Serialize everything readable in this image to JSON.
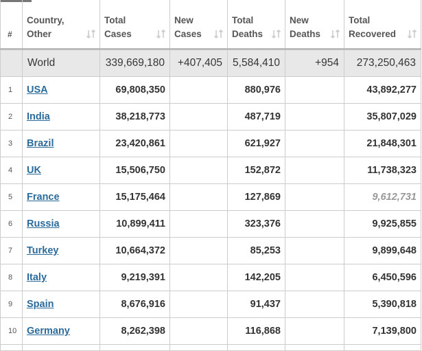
{
  "table": {
    "headers": [
      [
        "#"
      ],
      [
        "Country,",
        "Other"
      ],
      [
        "Total",
        "Cases"
      ],
      [
        "New",
        "Cases"
      ],
      [
        "Total",
        "Deaths"
      ],
      [
        "New",
        "Deaths"
      ],
      [
        "Total",
        "Recovered"
      ]
    ],
    "world": {
      "country": "World",
      "total_cases": "339,669,180",
      "new_cases": "+407,405",
      "total_deaths": "5,584,410",
      "new_deaths": "+954",
      "total_recovered": "273,250,463"
    },
    "rows": [
      {
        "rank": "1",
        "country": "USA",
        "total_cases": "69,808,350",
        "total_deaths": "880,976",
        "total_recovered": "43,892,277"
      },
      {
        "rank": "2",
        "country": "India",
        "total_cases": "38,218,773",
        "total_deaths": "487,719",
        "total_recovered": "35,807,029"
      },
      {
        "rank": "3",
        "country": "Brazil",
        "total_cases": "23,420,861",
        "total_deaths": "621,927",
        "total_recovered": "21,848,301"
      },
      {
        "rank": "4",
        "country": "UK",
        "total_cases": "15,506,750",
        "total_deaths": "152,872",
        "total_recovered": "11,738,323"
      },
      {
        "rank": "5",
        "country": "France",
        "total_cases": "15,175,464",
        "total_deaths": "127,869",
        "total_recovered": "9,612,731"
      },
      {
        "rank": "6",
        "country": "Russia",
        "total_cases": "10,899,411",
        "total_deaths": "323,376",
        "total_recovered": "9,925,855"
      },
      {
        "rank": "7",
        "country": "Turkey",
        "total_cases": "10,664,372",
        "total_deaths": "85,253",
        "total_recovered": "9,899,648"
      },
      {
        "rank": "8",
        "country": "Italy",
        "total_cases": "9,219,391",
        "total_deaths": "142,205",
        "total_recovered": "6,450,596"
      },
      {
        "rank": "9",
        "country": "Spain",
        "total_cases": "8,676,916",
        "total_deaths": "91,437",
        "total_recovered": "5,390,818"
      },
      {
        "rank": "10",
        "country": "Germany",
        "total_cases": "8,262,398",
        "total_deaths": "116,868",
        "total_recovered": "7,139,800"
      }
    ]
  }
}
